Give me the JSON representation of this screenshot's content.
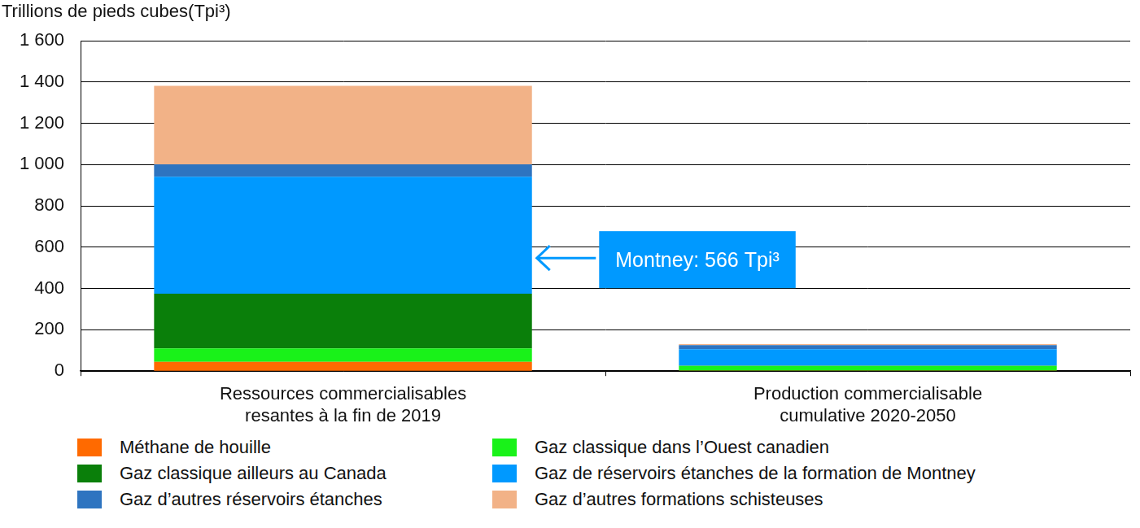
{
  "chart_data": {
    "type": "bar",
    "y_label": "Trillions de pieds cubes(Tpi³)",
    "categories": [
      [
        "Ressources commercialisables",
        "resantes à la fin de 2019"
      ],
      [
        "Production commercialisable",
        "cumulative 2020-2050"
      ]
    ],
    "series": [
      {
        "name": "Méthane de houille",
        "color": "#ff6a00",
        "values": [
          45,
          3
        ]
      },
      {
        "name": "Gaz classique dans l’Ouest canadien",
        "color": "#19f219",
        "values": [
          65,
          22
        ]
      },
      {
        "name": "Gaz classique ailleurs au Canada",
        "color": "#0a7f0a",
        "values": [
          265,
          1
        ]
      },
      {
        "name": "Gaz de réservoirs étanches de la formation de Montney",
        "color": "#0099ff",
        "values": [
          566,
          80
        ]
      },
      {
        "name": "Gaz d’autres réservoirs étanches",
        "color": "#2e74c0",
        "values": [
          60,
          20
        ]
      },
      {
        "name": "Gaz d’autres formations schisteuses",
        "color": "#f2b287",
        "values": [
          380,
          5
        ]
      }
    ],
    "annotations": [
      {
        "text": "Montney: 566 Tpi³",
        "series": "Gaz de réservoirs étanches de la formation de Montney",
        "category_index": 0
      }
    ],
    "ylim": [
      0,
      1600
    ],
    "yticks": [
      0,
      200,
      400,
      600,
      800,
      {
        "value": 1000,
        "label": "1 000"
      },
      {
        "value": 1200,
        "label": "1 200"
      },
      {
        "value": 1400,
        "label": "1 400"
      },
      {
        "value": 1600,
        "label": "1 600"
      }
    ],
    "stacked": true,
    "grid": true,
    "legend": "bottom"
  }
}
